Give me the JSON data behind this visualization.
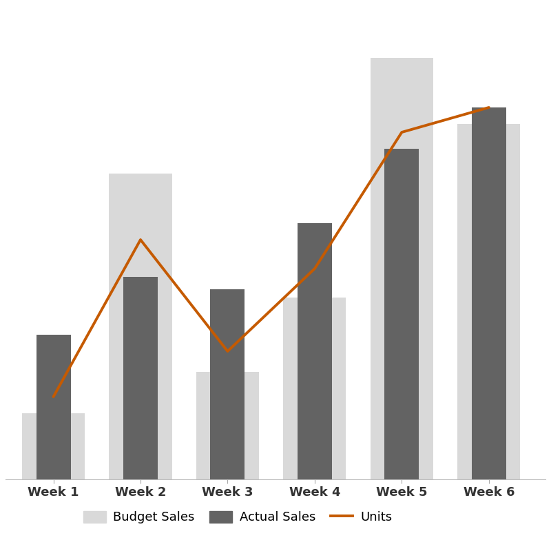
{
  "categories": [
    "Week 1",
    "Week 2",
    "Week 3",
    "Week 4",
    "Week 5",
    "Week 6"
  ],
  "budget_sales": [
    80,
    370,
    130,
    220,
    510,
    430
  ],
  "actual_sales": [
    175,
    245,
    230,
    310,
    400,
    450
  ],
  "units": [
    100,
    290,
    155,
    255,
    420,
    450
  ],
  "budget_color": "#d9d9d9",
  "actual_color": "#636363",
  "line_color": "#c55a00",
  "line_width": 2.8,
  "bar_width": 0.72,
  "inner_bar_ratio": 0.55,
  "background_color": "#ffffff",
  "legend_labels": [
    "Budget Sales",
    "Actual Sales",
    "Units"
  ],
  "ylim": [
    0,
    560
  ],
  "figsize": [
    8.0,
    8.0
  ],
  "dpi": 100,
  "xlabel_fontsize": 13,
  "xlabel_color": "#333333"
}
